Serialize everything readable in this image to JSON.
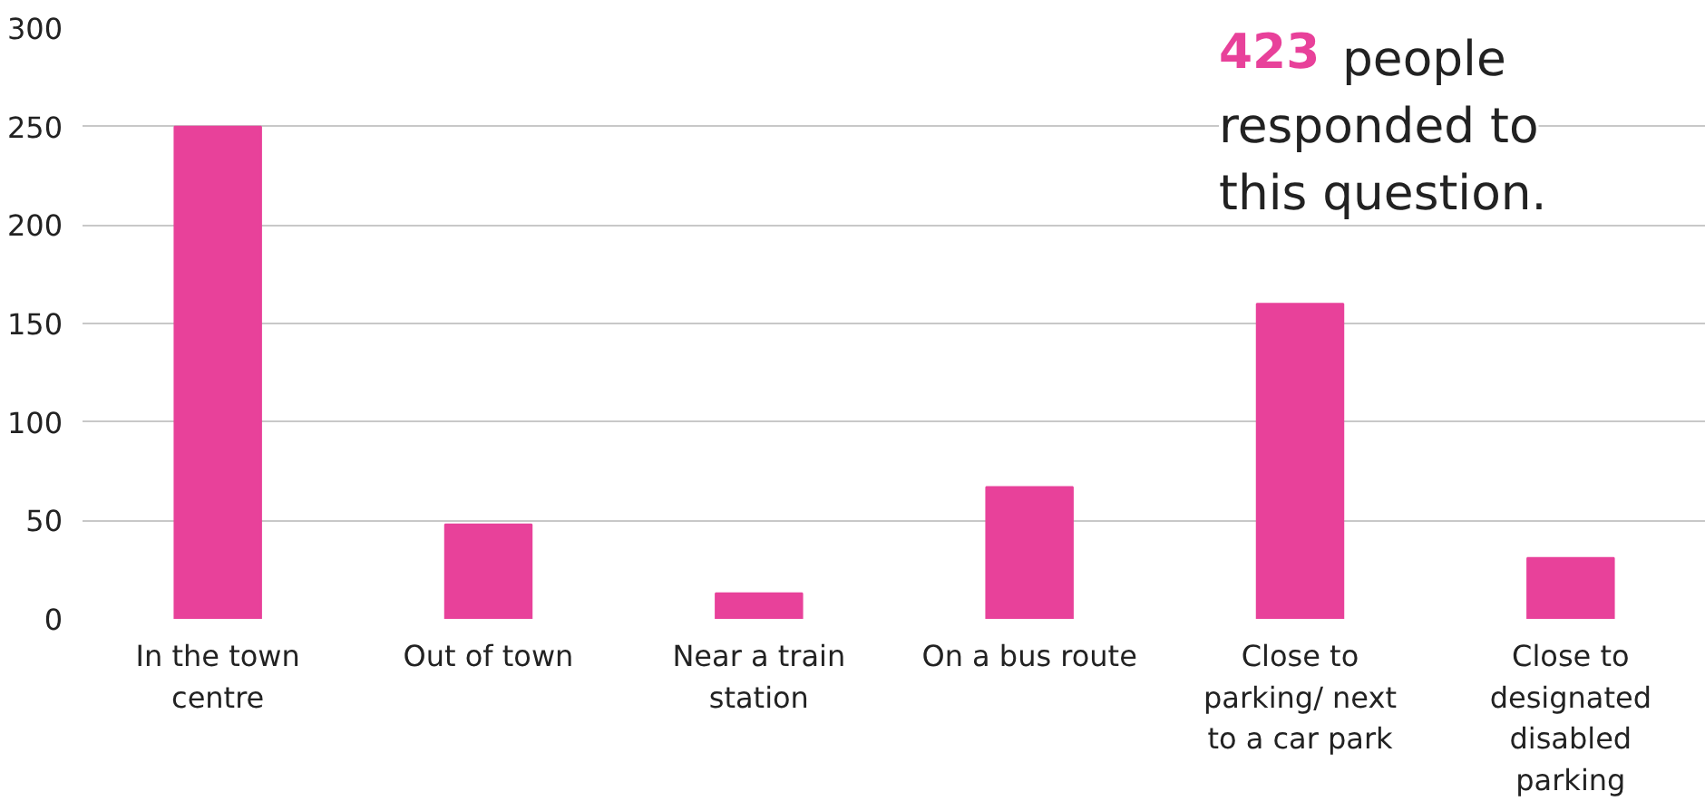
{
  "chart_data": {
    "type": "bar",
    "categories": [
      "In the town centre",
      "Out of town",
      "Near a train station",
      "On a bus route",
      "Close to parking/ next to a car park",
      "Close to designated disabled parking"
    ],
    "values": [
      250,
      48,
      13,
      67,
      160,
      31
    ],
    "color": "#e8419a",
    "ylim": [
      0,
      300
    ],
    "yticks": [
      0,
      50,
      100,
      150,
      200,
      250,
      300
    ],
    "grid": "y",
    "annotations": [
      "423 people responded to this question."
    ]
  }
}
